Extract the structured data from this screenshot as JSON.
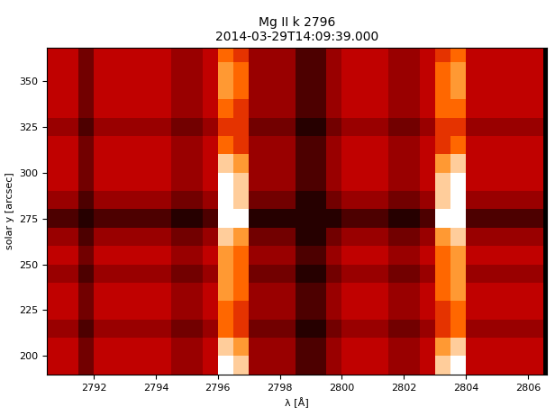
{
  "chart_data": {
    "type": "heatmap",
    "title": "Mg II k 2796\n2014-03-29T14:09:39.000",
    "x_label": "λ [Å]",
    "y_label": "solar y [arcsec]",
    "xlim": [
      2790.5,
      2806.6
    ],
    "ylim": [
      190,
      368
    ],
    "xticks": [
      2792,
      2794,
      2796,
      2798,
      2800,
      2802,
      2804,
      2806
    ],
    "yticks": [
      200,
      225,
      250,
      275,
      300,
      325,
      350
    ],
    "grid": false,
    "value_range": [
      0,
      10
    ],
    "x": [
      2790.75,
      2791.25,
      2791.75,
      2792.25,
      2792.75,
      2793.25,
      2793.75,
      2794.25,
      2794.75,
      2795.25,
      2795.75,
      2796.25,
      2796.75,
      2797.25,
      2797.75,
      2798.25,
      2798.75,
      2799.25,
      2799.75,
      2800.25,
      2800.75,
      2801.25,
      2801.75,
      2802.25,
      2802.75,
      2803.25,
      2803.75,
      2804.25,
      2804.75,
      2805.25,
      2805.75,
      2806.25
    ],
    "y": [
      195,
      205,
      215,
      225,
      235,
      245,
      255,
      265,
      275,
      285,
      295,
      305,
      315,
      325,
      335,
      345,
      355,
      365
    ],
    "cells": [
      [
        5,
        5,
        3,
        5,
        5,
        5,
        5,
        5,
        4,
        4,
        5,
        10,
        9,
        4,
        4,
        4,
        2,
        2,
        4,
        5,
        5,
        5,
        4,
        4,
        5,
        9,
        10,
        5,
        5,
        5,
        5,
        5
      ],
      [
        5,
        5,
        3,
        5,
        5,
        5,
        5,
        5,
        4,
        4,
        5,
        9,
        8,
        4,
        4,
        4,
        2,
        2,
        4,
        5,
        5,
        5,
        4,
        4,
        5,
        8,
        9,
        5,
        5,
        5,
        5,
        5
      ],
      [
        4,
        4,
        2,
        4,
        4,
        4,
        4,
        4,
        3,
        3,
        4,
        7,
        6,
        3,
        3,
        3,
        1,
        1,
        3,
        4,
        4,
        4,
        3,
        3,
        4,
        6,
        7,
        4,
        4,
        4,
        4,
        4
      ],
      [
        5,
        5,
        3,
        5,
        5,
        5,
        5,
        5,
        4,
        4,
        5,
        7,
        6,
        4,
        4,
        4,
        2,
        2,
        4,
        5,
        5,
        5,
        4,
        4,
        5,
        6,
        7,
        5,
        5,
        5,
        5,
        5
      ],
      [
        5,
        5,
        3,
        5,
        5,
        5,
        5,
        5,
        4,
        4,
        5,
        8,
        7,
        4,
        4,
        4,
        2,
        2,
        4,
        5,
        5,
        5,
        4,
        4,
        5,
        7,
        8,
        5,
        5,
        5,
        5,
        5
      ],
      [
        4,
        4,
        2,
        4,
        4,
        4,
        4,
        4,
        3,
        3,
        4,
        8,
        7,
        3,
        3,
        3,
        1,
        1,
        3,
        4,
        4,
        4,
        3,
        3,
        4,
        7,
        8,
        4,
        4,
        4,
        4,
        4
      ],
      [
        5,
        5,
        3,
        5,
        5,
        5,
        5,
        5,
        4,
        4,
        5,
        8,
        7,
        4,
        4,
        4,
        2,
        2,
        4,
        5,
        5,
        5,
        4,
        4,
        5,
        7,
        8,
        5,
        5,
        5,
        5,
        5
      ],
      [
        4,
        4,
        2,
        4,
        4,
        4,
        4,
        4,
        3,
        3,
        4,
        9,
        8,
        3,
        3,
        3,
        1,
        1,
        3,
        4,
        4,
        4,
        3,
        3,
        4,
        8,
        9,
        4,
        4,
        4,
        4,
        4
      ],
      [
        2,
        2,
        1,
        2,
        2,
        2,
        2,
        2,
        1,
        1,
        2,
        10,
        10,
        1,
        1,
        1,
        1,
        1,
        1,
        2,
        2,
        2,
        1,
        1,
        2,
        10,
        10,
        2,
        2,
        2,
        2,
        2
      ],
      [
        4,
        4,
        2,
        4,
        4,
        4,
        4,
        4,
        3,
        3,
        4,
        10,
        9,
        3,
        3,
        3,
        1,
        1,
        3,
        4,
        4,
        4,
        3,
        3,
        4,
        9,
        10,
        4,
        4,
        4,
        4,
        4
      ],
      [
        5,
        5,
        3,
        5,
        5,
        5,
        5,
        5,
        4,
        4,
        5,
        10,
        9,
        4,
        4,
        4,
        2,
        2,
        4,
        5,
        5,
        5,
        4,
        4,
        5,
        9,
        10,
        5,
        5,
        5,
        5,
        5
      ],
      [
        5,
        5,
        3,
        5,
        5,
        5,
        5,
        5,
        4,
        4,
        5,
        9,
        8,
        4,
        4,
        4,
        2,
        2,
        4,
        5,
        5,
        5,
        4,
        4,
        5,
        8,
        9,
        5,
        5,
        5,
        5,
        5
      ],
      [
        5,
        5,
        3,
        5,
        5,
        5,
        5,
        5,
        4,
        4,
        5,
        7,
        6,
        4,
        4,
        4,
        2,
        2,
        4,
        5,
        5,
        5,
        4,
        4,
        5,
        6,
        7,
        5,
        5,
        5,
        5,
        5
      ],
      [
        4,
        4,
        2,
        4,
        4,
        4,
        4,
        4,
        3,
        3,
        4,
        6,
        6,
        3,
        3,
        3,
        1,
        1,
        3,
        4,
        4,
        4,
        3,
        3,
        4,
        6,
        6,
        4,
        4,
        4,
        4,
        4
      ],
      [
        5,
        5,
        3,
        5,
        5,
        5,
        5,
        5,
        4,
        4,
        5,
        7,
        6,
        4,
        4,
        4,
        2,
        2,
        4,
        5,
        5,
        5,
        4,
        4,
        5,
        7,
        7,
        5,
        5,
        5,
        5,
        5
      ],
      [
        5,
        5,
        3,
        5,
        5,
        5,
        5,
        5,
        4,
        4,
        5,
        8,
        7,
        4,
        4,
        4,
        2,
        2,
        4,
        5,
        5,
        5,
        4,
        4,
        5,
        7,
        8,
        5,
        5,
        5,
        5,
        5
      ],
      [
        5,
        5,
        3,
        5,
        5,
        5,
        5,
        5,
        4,
        4,
        5,
        8,
        7,
        4,
        4,
        4,
        2,
        2,
        4,
        5,
        5,
        5,
        4,
        4,
        5,
        7,
        8,
        5,
        5,
        5,
        5,
        5
      ],
      [
        5,
        5,
        3,
        5,
        5,
        5,
        5,
        5,
        4,
        4,
        5,
        7,
        6,
        4,
        4,
        4,
        2,
        2,
        4,
        5,
        5,
        5,
        4,
        4,
        5,
        6,
        7,
        5,
        5,
        5,
        5,
        5
      ]
    ]
  }
}
